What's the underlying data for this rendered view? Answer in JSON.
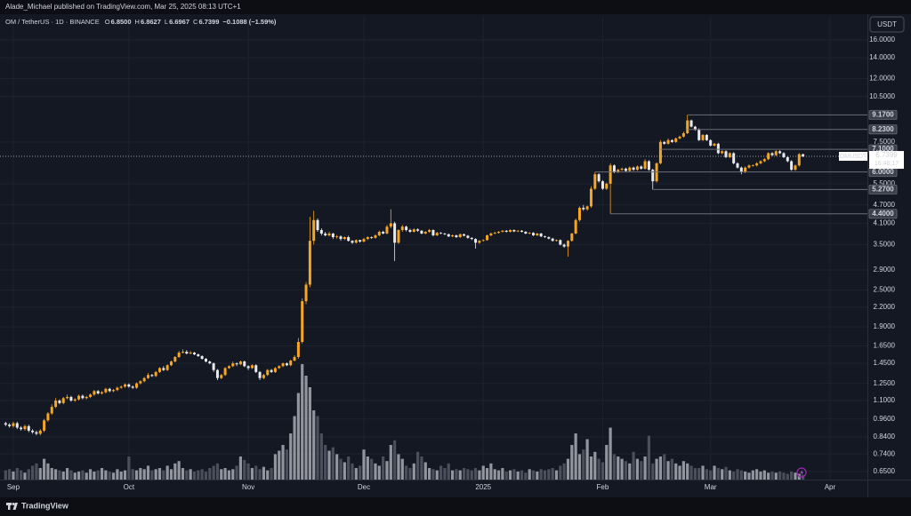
{
  "header": {
    "publisher": "Alade_Michael published on TradingView.com, Mar 25, 2025 08:13 UTC+1"
  },
  "footer": {
    "brand": "TradingView"
  },
  "chart_data": {
    "type": "candlestick",
    "currency": "USDT",
    "legend": {
      "symbol": "OM / TetherUS · 1D · BINANCE",
      "fields": [
        {
          "name": "O",
          "value": 6.85,
          "label": "6.8500"
        },
        {
          "name": "H",
          "value": 6.8627,
          "label": "6.8627"
        },
        {
          "name": "L",
          "value": 6.6967,
          "label": "6.6967"
        },
        {
          "name": "C",
          "value": 6.7399,
          "label": "6.7399"
        }
      ],
      "change": {
        "value": -0.1088,
        "percent": -1.59,
        "label": "−0.1088 (−1.59%)"
      }
    },
    "last_price": {
      "symbol": "OMUSDT",
      "value": 6.7399,
      "countdown": "16:46:17"
    },
    "log": true,
    "grid": true,
    "colors": {
      "up": "#f5a623",
      "down": "#e8eaef",
      "volume_up": "#a9acb4",
      "volume_down": "#555966",
      "level": "#6b6e78",
      "grid": "#1e2230"
    },
    "ylim": [
      0.612,
      19.1
    ],
    "yticks": [
      {
        "value": 16,
        "label": "16.0000"
      },
      {
        "value": 14,
        "label": "14.0000"
      },
      {
        "value": 12,
        "label": "12.0000"
      },
      {
        "value": 10.5,
        "label": "10.5000"
      },
      {
        "value": 7.5,
        "label": "7.5000"
      },
      {
        "value": 5.5,
        "label": "5.5000"
      },
      {
        "value": 4.7,
        "label": "4.7000"
      },
      {
        "value": 4.1,
        "label": "4.1000"
      },
      {
        "value": 3.5,
        "label": "3.5000"
      },
      {
        "value": 2.9,
        "label": "2.9000"
      },
      {
        "value": 2.5,
        "label": "2.5000"
      },
      {
        "value": 2.2,
        "label": "2.2000"
      },
      {
        "value": 1.9,
        "label": "1.9000"
      },
      {
        "value": 1.65,
        "label": "1.6500"
      },
      {
        "value": 1.45,
        "label": "1.4500"
      },
      {
        "value": 1.25,
        "label": "1.2500"
      },
      {
        "value": 1.1,
        "label": "1.1000"
      },
      {
        "value": 0.96,
        "label": "0.9600"
      },
      {
        "value": 0.84,
        "label": "0.8400"
      },
      {
        "value": 0.74,
        "label": "0.7400"
      },
      {
        "value": 0.65,
        "label": "0.6500"
      }
    ],
    "levels": [
      {
        "value": 9.17,
        "label": "9.1700"
      },
      {
        "value": 8.23,
        "label": "8.2300"
      },
      {
        "value": 7.1,
        "label": "7.1000"
      },
      {
        "value": 6.0,
        "label": "6.0000"
      },
      {
        "value": 5.27,
        "label": "5.2700"
      },
      {
        "value": 4.4,
        "label": "4.4000"
      }
    ],
    "categories": [
      null,
      null,
      "Sep",
      null,
      null,
      null,
      null,
      null,
      null,
      null,
      null,
      null,
      null,
      null,
      null,
      null,
      null,
      null,
      null,
      null,
      null,
      null,
      null,
      null,
      null,
      null,
      null,
      null,
      null,
      null,
      null,
      null,
      "Oct",
      null,
      null,
      null,
      null,
      null,
      null,
      null,
      null,
      null,
      null,
      null,
      null,
      null,
      null,
      null,
      null,
      null,
      null,
      null,
      null,
      null,
      null,
      null,
      null,
      null,
      null,
      null,
      null,
      null,
      null,
      "Nov",
      null,
      null,
      null,
      null,
      null,
      null,
      null,
      null,
      null,
      null,
      null,
      null,
      null,
      null,
      null,
      null,
      null,
      null,
      null,
      null,
      null,
      null,
      null,
      null,
      null,
      null,
      null,
      null,
      null,
      "Dec",
      null,
      null,
      null,
      null,
      null,
      null,
      null,
      null,
      null,
      null,
      null,
      null,
      null,
      null,
      null,
      null,
      null,
      null,
      null,
      null,
      null,
      null,
      null,
      null,
      null,
      null,
      null,
      null,
      null,
      null,
      "2025",
      null,
      null,
      null,
      null,
      null,
      null,
      null,
      null,
      null,
      null,
      null,
      null,
      null,
      null,
      null,
      null,
      null,
      null,
      null,
      null,
      null,
      null,
      null,
      null,
      null,
      null,
      null,
      null,
      null,
      null,
      "Feb",
      null,
      null,
      null,
      null,
      null,
      null,
      null,
      null,
      null,
      null,
      null,
      null,
      null,
      null,
      null,
      null,
      null,
      null,
      null,
      null,
      null,
      null,
      null,
      null,
      null,
      null,
      null,
      "Mar",
      null,
      null,
      null,
      null,
      null,
      null,
      null,
      null,
      null,
      null,
      null,
      null,
      null,
      null,
      null,
      null,
      null,
      null,
      null,
      null,
      null,
      null,
      null,
      null,
      null,
      null,
      null,
      null,
      null,
      null,
      "Apr",
      null,
      null,
      null,
      null,
      null,
      null,
      null
    ],
    "open": [
      0.93,
      0.92,
      0.91,
      0.93,
      0.9,
      0.89,
      0.91,
      0.88,
      0.87,
      0.86,
      0.88,
      0.95,
      1.0,
      1.05,
      1.1,
      1.08,
      1.12,
      1.13,
      1.1,
      1.11,
      1.14,
      1.12,
      1.13,
      1.15,
      1.18,
      1.16,
      1.17,
      1.2,
      1.18,
      1.19,
      1.21,
      1.22,
      1.24,
      1.22,
      1.21,
      1.25,
      1.27,
      1.3,
      1.33,
      1.32,
      1.36,
      1.4,
      1.38,
      1.43,
      1.47,
      1.52,
      1.57,
      1.58,
      1.56,
      1.57,
      1.55,
      1.53,
      1.5,
      1.47,
      1.45,
      1.38,
      1.3,
      1.33,
      1.4,
      1.42,
      1.45,
      1.44,
      1.47,
      1.42,
      1.4,
      1.43,
      1.36,
      1.3,
      1.33,
      1.38,
      1.36,
      1.4,
      1.42,
      1.45,
      1.43,
      1.48,
      1.52,
      1.7,
      2.3,
      2.6,
      3.6,
      4.2,
      3.9,
      3.8,
      3.75,
      3.8,
      3.7,
      3.72,
      3.65,
      3.7,
      3.6,
      3.55,
      3.62,
      3.58,
      3.65,
      3.7,
      3.68,
      3.75,
      3.85,
      3.8,
      4.0,
      4.1,
      3.55,
      3.9,
      4.0,
      3.9,
      3.85,
      3.92,
      3.88,
      3.8,
      3.85,
      3.9,
      3.75,
      3.82,
      3.8,
      3.78,
      3.72,
      3.75,
      3.7,
      3.78,
      3.74,
      3.68,
      3.65,
      3.55,
      3.6,
      3.62,
      3.75,
      3.8,
      3.82,
      3.85,
      3.88,
      3.85,
      3.9,
      3.86,
      3.88,
      3.85,
      3.8,
      3.82,
      3.75,
      3.8,
      3.72,
      3.7,
      3.66,
      3.6,
      3.62,
      3.5,
      3.45,
      3.6,
      3.8,
      4.2,
      4.6,
      4.55,
      4.65,
      5.3,
      5.9,
      5.6,
      5.3,
      5.5,
      6.3,
      6.0,
      6.1,
      6.15,
      6.05,
      6.2,
      6.1,
      6.25,
      6.15,
      6.5,
      6.1,
      5.6,
      6.4,
      7.5,
      7.4,
      7.6,
      7.5,
      7.7,
      7.8,
      8.0,
      8.8,
      8.4,
      8.2,
      7.6,
      7.9,
      7.6,
      7.3,
      7.4,
      6.9,
      7.0,
      6.7,
      6.9,
      6.4,
      6.2,
      6.0,
      6.2,
      6.3,
      6.3,
      6.4,
      6.5,
      6.6,
      6.9,
      6.8,
      7.0,
      6.9,
      6.7,
      6.5,
      6.1,
      6.3,
      6.85,
      null,
      null,
      null,
      null,
      null,
      null,
      null,
      null,
      null,
      null,
      null,
      null,
      null,
      null
    ],
    "high": [
      0.94,
      0.93,
      0.94,
      0.94,
      0.91,
      0.92,
      0.92,
      0.89,
      0.88,
      0.89,
      0.96,
      1.01,
      1.07,
      1.12,
      1.11,
      1.13,
      1.15,
      1.14,
      1.12,
      1.15,
      1.15,
      1.14,
      1.16,
      1.19,
      1.19,
      1.18,
      1.21,
      1.21,
      1.2,
      1.22,
      1.23,
      1.25,
      1.25,
      1.23,
      1.26,
      1.28,
      1.31,
      1.35,
      1.34,
      1.37,
      1.41,
      1.42,
      1.44,
      1.48,
      1.53,
      1.59,
      1.61,
      1.6,
      1.59,
      1.58,
      1.56,
      1.54,
      1.51,
      1.48,
      1.46,
      1.39,
      1.34,
      1.41,
      1.43,
      1.47,
      1.46,
      1.48,
      1.48,
      1.43,
      1.44,
      1.44,
      1.37,
      1.34,
      1.39,
      1.39,
      1.41,
      1.43,
      1.46,
      1.46,
      1.49,
      1.54,
      1.75,
      2.35,
      2.65,
      4.3,
      4.5,
      4.25,
      3.95,
      3.85,
      3.85,
      3.82,
      3.76,
      3.75,
      3.72,
      3.74,
      3.62,
      3.64,
      3.63,
      3.68,
      3.72,
      3.72,
      3.78,
      3.88,
      3.88,
      4.05,
      4.55,
      4.15,
      3.92,
      4.05,
      4.03,
      3.94,
      3.95,
      3.95,
      3.9,
      3.87,
      3.93,
      3.92,
      3.85,
      3.84,
      3.82,
      3.8,
      3.77,
      3.77,
      3.8,
      3.8,
      3.76,
      3.7,
      3.67,
      3.62,
      3.64,
      3.77,
      3.83,
      3.85,
      3.87,
      3.9,
      3.9,
      3.92,
      3.92,
      3.9,
      3.9,
      3.87,
      3.84,
      3.84,
      3.82,
      3.82,
      3.74,
      3.72,
      3.68,
      3.64,
      3.64,
      3.53,
      3.62,
      3.82,
      4.25,
      4.65,
      4.7,
      4.68,
      5.4,
      6.0,
      5.95,
      5.65,
      5.55,
      6.4,
      6.35,
      6.15,
      6.2,
      6.2,
      6.25,
      6.25,
      6.3,
      6.3,
      6.6,
      6.55,
      6.15,
      6.45,
      7.6,
      7.55,
      7.7,
      7.65,
      7.75,
      7.85,
      8.1,
      9.17,
      8.85,
      8.45,
      8.3,
      7.95,
      7.95,
      7.65,
      7.45,
      7.45,
      7.05,
      7.05,
      6.95,
      6.95,
      6.45,
      6.25,
      6.25,
      6.35,
      6.35,
      6.45,
      6.55,
      6.65,
      6.95,
      6.95,
      7.05,
      7.05,
      6.95,
      6.75,
      6.55,
      6.35,
      6.9,
      6.8627,
      null,
      null,
      null,
      null,
      null,
      null,
      null,
      null,
      null,
      null,
      null,
      null,
      null,
      null
    ],
    "low": [
      0.91,
      0.9,
      0.9,
      0.89,
      0.88,
      0.88,
      0.87,
      0.86,
      0.85,
      0.85,
      0.87,
      0.94,
      0.99,
      1.04,
      1.07,
      1.07,
      1.11,
      1.09,
      1.09,
      1.1,
      1.11,
      1.11,
      1.12,
      1.14,
      1.15,
      1.15,
      1.16,
      1.17,
      1.17,
      1.18,
      1.2,
      1.21,
      1.21,
      1.2,
      1.2,
      1.24,
      1.26,
      1.29,
      1.31,
      1.31,
      1.35,
      1.37,
      1.37,
      1.42,
      1.46,
      1.51,
      1.56,
      1.55,
      1.55,
      1.54,
      1.52,
      1.49,
      1.46,
      1.44,
      1.36,
      1.28,
      1.29,
      1.32,
      1.39,
      1.41,
      1.42,
      1.43,
      1.41,
      1.38,
      1.39,
      1.35,
      1.28,
      1.29,
      1.32,
      1.35,
      1.35,
      1.39,
      1.41,
      1.42,
      1.42,
      1.47,
      1.5,
      1.68,
      2.25,
      2.55,
      3.5,
      3.85,
      3.75,
      3.72,
      3.72,
      3.65,
      3.66,
      3.6,
      3.62,
      3.58,
      3.52,
      3.53,
      3.55,
      3.56,
      3.62,
      3.65,
      3.66,
      3.72,
      3.78,
      3.78,
      3.95,
      3.1,
      3.52,
      3.85,
      3.86,
      3.82,
      3.83,
      3.85,
      3.78,
      3.78,
      3.82,
      3.72,
      3.73,
      3.78,
      3.76,
      3.7,
      3.7,
      3.68,
      3.68,
      3.72,
      3.66,
      3.62,
      3.4,
      3.52,
      3.58,
      3.6,
      3.72,
      3.78,
      3.8,
      3.83,
      3.83,
      3.83,
      3.84,
      3.84,
      3.83,
      3.78,
      3.78,
      3.73,
      3.73,
      3.7,
      3.68,
      3.64,
      3.58,
      3.58,
      3.48,
      3.42,
      3.2,
      3.58,
      3.78,
      4.15,
      4.5,
      4.5,
      4.6,
      5.25,
      5.55,
      5.25,
      5.25,
      4.4,
      5.95,
      5.95,
      6.05,
      6.0,
      6.0,
      6.05,
      6.05,
      6.1,
      6.1,
      6.05,
      5.27,
      5.55,
      6.35,
      7.35,
      7.35,
      7.45,
      7.45,
      7.65,
      7.75,
      7.95,
      8.35,
      8.15,
      7.55,
      7.55,
      7.55,
      7.25,
      7.25,
      6.85,
      6.85,
      6.65,
      6.65,
      6.35,
      6.15,
      5.9,
      5.95,
      6.15,
      6.25,
      6.25,
      6.35,
      6.45,
      6.55,
      6.75,
      6.75,
      6.85,
      6.65,
      6.45,
      6.05,
      6.05,
      6.25,
      6.6967,
      null,
      null,
      null,
      null,
      null,
      null,
      null,
      null,
      null,
      null,
      null,
      null,
      null,
      null
    ],
    "close": [
      0.92,
      0.91,
      0.93,
      0.9,
      0.89,
      0.91,
      0.88,
      0.87,
      0.86,
      0.88,
      0.95,
      1.0,
      1.05,
      1.1,
      1.08,
      1.12,
      1.13,
      1.1,
      1.11,
      1.14,
      1.12,
      1.13,
      1.15,
      1.18,
      1.16,
      1.17,
      1.2,
      1.18,
      1.19,
      1.21,
      1.22,
      1.24,
      1.22,
      1.21,
      1.25,
      1.27,
      1.3,
      1.33,
      1.32,
      1.36,
      1.4,
      1.38,
      1.43,
      1.47,
      1.52,
      1.57,
      1.58,
      1.56,
      1.57,
      1.55,
      1.53,
      1.5,
      1.47,
      1.45,
      1.38,
      1.3,
      1.33,
      1.4,
      1.42,
      1.45,
      1.44,
      1.47,
      1.42,
      1.4,
      1.43,
      1.36,
      1.3,
      1.33,
      1.38,
      1.36,
      1.4,
      1.42,
      1.45,
      1.43,
      1.48,
      1.52,
      1.7,
      2.3,
      2.6,
      3.6,
      4.2,
      3.9,
      3.8,
      3.75,
      3.8,
      3.7,
      3.72,
      3.65,
      3.7,
      3.6,
      3.55,
      3.62,
      3.58,
      3.65,
      3.7,
      3.68,
      3.75,
      3.85,
      3.8,
      4.0,
      4.1,
      3.55,
      3.9,
      4.0,
      3.9,
      3.85,
      3.92,
      3.88,
      3.8,
      3.85,
      3.9,
      3.75,
      3.82,
      3.8,
      3.78,
      3.72,
      3.75,
      3.7,
      3.78,
      3.74,
      3.68,
      3.65,
      3.55,
      3.6,
      3.62,
      3.75,
      3.8,
      3.82,
      3.85,
      3.88,
      3.85,
      3.9,
      3.86,
      3.88,
      3.85,
      3.8,
      3.82,
      3.75,
      3.8,
      3.72,
      3.7,
      3.66,
      3.6,
      3.62,
      3.5,
      3.45,
      3.6,
      3.8,
      4.2,
      4.6,
      4.55,
      4.65,
      5.3,
      5.9,
      5.6,
      5.3,
      5.5,
      6.3,
      6.0,
      6.1,
      6.15,
      6.05,
      6.2,
      6.1,
      6.25,
      6.15,
      6.5,
      6.1,
      5.6,
      6.4,
      7.5,
      7.4,
      7.6,
      7.5,
      7.7,
      7.8,
      8.0,
      8.8,
      8.4,
      8.2,
      7.6,
      7.9,
      7.6,
      7.3,
      7.4,
      6.9,
      7.0,
      6.7,
      6.9,
      6.4,
      6.2,
      6.0,
      6.2,
      6.3,
      6.3,
      6.4,
      6.5,
      6.6,
      6.9,
      6.8,
      7.0,
      6.9,
      6.7,
      6.5,
      6.1,
      6.3,
      6.85,
      6.7399,
      null,
      null,
      null,
      null,
      null,
      null,
      null,
      null,
      null,
      null,
      null,
      null,
      null,
      null
    ],
    "volume": [
      8,
      9,
      7,
      10,
      8,
      6,
      9,
      12,
      14,
      10,
      18,
      14,
      10,
      9,
      8,
      7,
      10,
      8,
      6,
      7,
      8,
      6,
      9,
      7,
      8,
      10,
      8,
      7,
      6,
      9,
      7,
      8,
      20,
      9,
      8,
      10,
      9,
      12,
      8,
      9,
      10,
      8,
      12,
      9,
      14,
      16,
      10,
      8,
      9,
      7,
      8,
      9,
      7,
      10,
      12,
      14,
      9,
      10,
      8,
      9,
      12,
      20,
      17,
      14,
      10,
      12,
      9,
      11,
      8,
      10,
      22,
      25,
      30,
      26,
      40,
      55,
      75,
      100,
      90,
      80,
      60,
      55,
      40,
      30,
      25,
      28,
      22,
      18,
      15,
      20,
      14,
      10,
      12,
      26,
      20,
      18,
      14,
      12,
      20,
      16,
      30,
      34,
      22,
      18,
      12,
      10,
      14,
      24,
      20,
      15,
      10,
      9,
      8,
      12,
      10,
      14,
      8,
      9,
      8,
      10,
      9,
      8,
      10,
      8,
      12,
      10,
      14,
      9,
      8,
      10,
      7,
      8,
      9,
      7,
      8,
      6,
      9,
      8,
      7,
      9,
      8,
      9,
      10,
      8,
      12,
      14,
      18,
      30,
      40,
      22,
      26,
      35,
      20,
      24,
      18,
      15,
      30,
      45,
      22,
      20,
      18,
      16,
      14,
      24,
      18,
      16,
      20,
      38,
      14,
      18,
      20,
      22,
      16,
      18,
      14,
      12,
      16,
      14,
      12,
      10,
      10,
      12,
      9,
      8,
      12,
      10,
      9,
      11,
      8,
      7,
      9,
      8,
      7,
      6,
      8,
      9,
      7,
      8,
      6,
      7,
      6,
      7,
      6,
      5,
      7,
      6,
      5,
      4,
      null,
      null,
      null,
      null,
      null,
      null,
      null,
      null,
      null,
      null,
      null,
      null,
      null,
      null
    ]
  }
}
